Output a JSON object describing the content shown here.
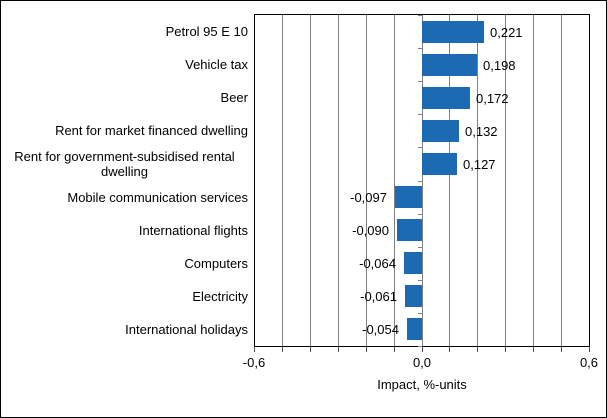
{
  "chart_data": {
    "type": "bar",
    "orientation": "horizontal",
    "title": "",
    "xlabel": "Impact, %-units",
    "ylabel": "",
    "categories": [
      "Petrol 95 E 10",
      "Vehicle tax",
      "Beer",
      "Rent for market financed dwelling",
      "Rent for government-subsidised rental dwelling",
      "Mobile communication services",
      "International flights",
      "Computers",
      "Electricity",
      "International holidays"
    ],
    "values": [
      0.221,
      0.198,
      0.172,
      0.132,
      0.127,
      -0.097,
      -0.09,
      -0.064,
      -0.061,
      -0.054
    ],
    "value_labels": [
      "0,221",
      "0,198",
      "0,172",
      "0,132",
      "0,127",
      "-0,097",
      "-0,090",
      "-0,064",
      "-0,061",
      "-0,054"
    ],
    "xlim": [
      -0.6,
      0.6
    ],
    "xtick_step": 0.1,
    "xtick_labels": [
      {
        "value": -0.6,
        "label": "-0,6"
      },
      {
        "value": 0.0,
        "label": "0,0"
      },
      {
        "value": 0.6,
        "label": "0,6"
      }
    ],
    "grid": true,
    "legend": false,
    "decimal_separator": ",",
    "colors": {
      "bar": "#1b6ab2",
      "gridline": "#808080",
      "plot_border": "#000000",
      "tick": "#4d4d4d",
      "text": "#000000",
      "background": "#ffffff"
    }
  }
}
